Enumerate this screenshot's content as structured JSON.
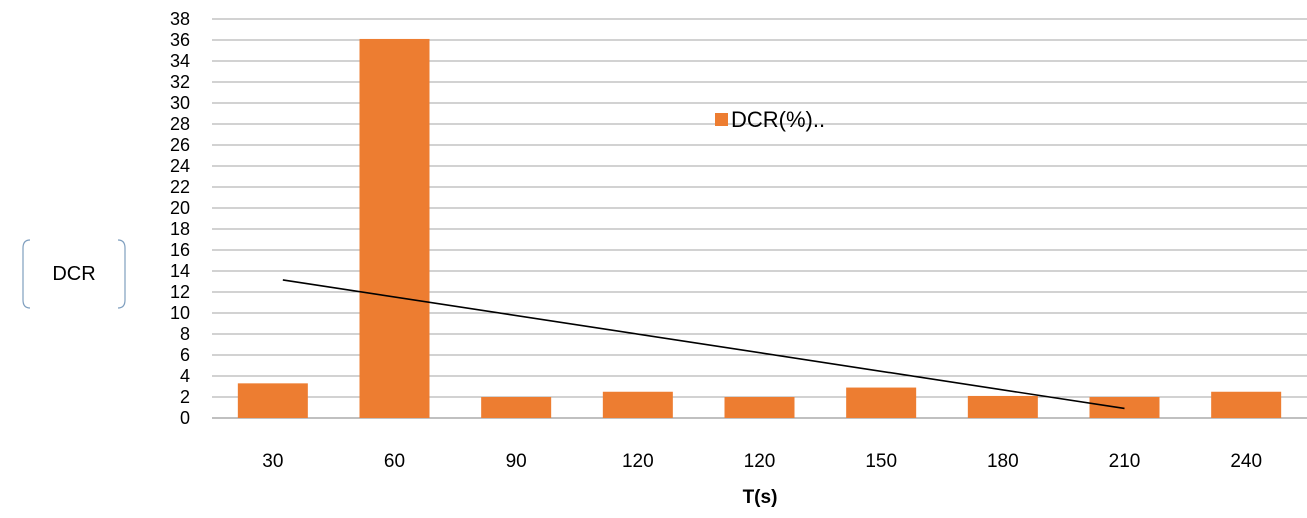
{
  "chart_data": {
    "type": "bar",
    "categories": [
      "30",
      "60",
      "90",
      "120",
      "120",
      "150",
      "180",
      "210",
      "240"
    ],
    "series": [
      {
        "name": "DCR(%)..",
        "values": [
          3.3,
          36.1,
          2.0,
          2.5,
          2.0,
          2.9,
          2.1,
          2.0,
          2.5
        ],
        "color": "#ED7D31"
      }
    ],
    "title": "",
    "xlabel": "T(s)",
    "ylabel": "DCR",
    "ylim": [
      0,
      38
    ],
    "ytick_step": 2,
    "grid": true,
    "legend_position": "inside-top-center",
    "trendline": {
      "type": "linear",
      "color": "#000000"
    }
  }
}
